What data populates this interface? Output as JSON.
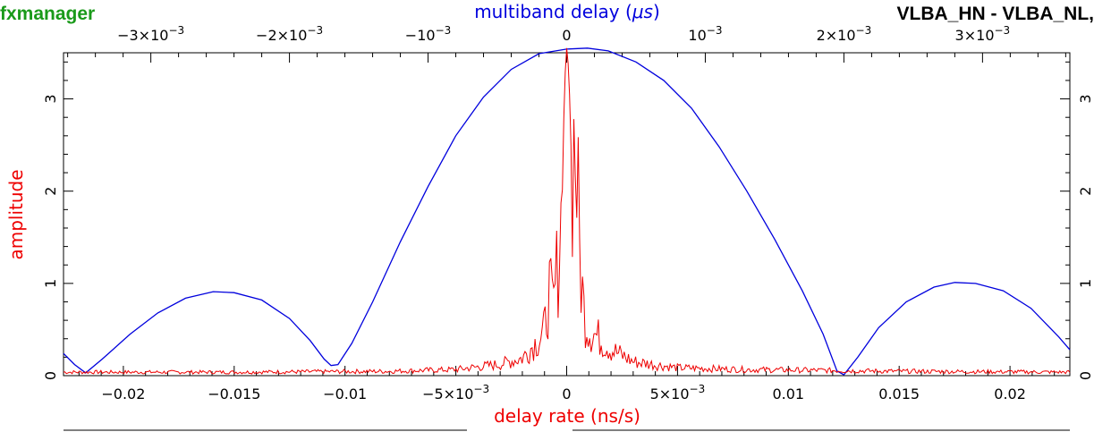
{
  "header": {
    "app_name": "fxmanager",
    "baseline": "VLBA_HN - VLBA_NL,"
  },
  "colors": {
    "brand": "#1a9a1a",
    "mbd_curve": "#0000dd",
    "rate_curve": "#ee0000",
    "axis": "#000000"
  },
  "chart_data": {
    "type": "line",
    "title": "",
    "ylabel": "amplitude",
    "ylim": [
      0,
      3.5
    ],
    "y_ticks": [
      "0",
      "1",
      "2",
      "3"
    ],
    "x_bottom": {
      "label": "delay rate (ns/s)",
      "lim": [
        -0.0227,
        0.0227
      ],
      "ticks": [
        {
          "v": -0.02,
          "label": "−0.02"
        },
        {
          "v": -0.015,
          "label": "−0.015"
        },
        {
          "v": -0.01,
          "label": "−0.01"
        },
        {
          "v": -0.005,
          "label": "−5×10",
          "sup": "−3"
        },
        {
          "v": 0,
          "label": "0"
        },
        {
          "v": 0.005,
          "label": "5×10",
          "sup": "−3"
        },
        {
          "v": 0.01,
          "label": "0.01"
        },
        {
          "v": 0.015,
          "label": "0.015"
        },
        {
          "v": 0.02,
          "label": "0.02"
        }
      ]
    },
    "x_top": {
      "label_text": "multiband delay (",
      "label_unit": "μs",
      "label_close": ")",
      "lim": [
        -0.00363,
        0.00363
      ],
      "ticks": [
        {
          "v": -0.003,
          "label": "−3×10",
          "sup": "−3"
        },
        {
          "v": -0.002,
          "label": "−2×10",
          "sup": "−3"
        },
        {
          "v": -0.001,
          "label": "−10",
          "sup": "−3"
        },
        {
          "v": 0,
          "label": "0"
        },
        {
          "v": 0.001,
          "label": "10",
          "sup": "−3"
        },
        {
          "v": 0.002,
          "label": "2×10",
          "sup": "−3"
        },
        {
          "v": 0.003,
          "label": "3×10",
          "sup": "−3"
        }
      ]
    },
    "series": [
      {
        "axis": "top",
        "color": "#0000dd",
        "points": [
          [
            -0.00363,
            0.24
          ],
          [
            -0.00355,
            0.12
          ],
          [
            -0.00347,
            0.03
          ],
          [
            -0.00335,
            0.18
          ],
          [
            -0.00315,
            0.45
          ],
          [
            -0.00295,
            0.68
          ],
          [
            -0.00275,
            0.84
          ],
          [
            -0.00255,
            0.91
          ],
          [
            -0.0024,
            0.9
          ],
          [
            -0.0022,
            0.82
          ],
          [
            -0.002,
            0.62
          ],
          [
            -0.00185,
            0.38
          ],
          [
            -0.00175,
            0.18
          ],
          [
            -0.0017,
            0.11
          ],
          [
            -0.00165,
            0.12
          ],
          [
            -0.00155,
            0.35
          ],
          [
            -0.0014,
            0.8
          ],
          [
            -0.0012,
            1.45
          ],
          [
            -0.001,
            2.05
          ],
          [
            -0.0008,
            2.6
          ],
          [
            -0.0006,
            3.02
          ],
          [
            -0.0004,
            3.32
          ],
          [
            -0.0002,
            3.49
          ],
          [
            0.0,
            3.54
          ],
          [
            0.00015,
            3.55
          ],
          [
            0.0003,
            3.52
          ],
          [
            0.0005,
            3.4
          ],
          [
            0.0007,
            3.2
          ],
          [
            0.0009,
            2.9
          ],
          [
            0.0011,
            2.48
          ],
          [
            0.0013,
            2.0
          ],
          [
            0.0015,
            1.48
          ],
          [
            0.0017,
            0.92
          ],
          [
            0.00185,
            0.45
          ],
          [
            0.00195,
            0.05
          ],
          [
            0.002,
            0.01
          ],
          [
            0.0021,
            0.2
          ],
          [
            0.00225,
            0.52
          ],
          [
            0.00245,
            0.8
          ],
          [
            0.00265,
            0.96
          ],
          [
            0.0028,
            1.01
          ],
          [
            0.00295,
            1.0
          ],
          [
            0.00315,
            0.92
          ],
          [
            0.00335,
            0.73
          ],
          [
            0.00355,
            0.42
          ],
          [
            0.00363,
            0.28
          ]
        ]
      },
      {
        "axis": "bottom",
        "color": "#ee0000",
        "points": [
          [
            -0.0227,
            0.04
          ],
          [
            -0.015,
            0.04
          ],
          [
            -0.008,
            0.05
          ],
          [
            -0.005,
            0.07
          ],
          [
            -0.003,
            0.13
          ],
          [
            -0.002,
            0.2
          ],
          [
            -0.0015,
            0.35
          ],
          [
            -0.001,
            0.5
          ],
          [
            -0.0008,
            0.98
          ],
          [
            -0.0006,
            0.75
          ],
          [
            -0.0004,
            1.3
          ],
          [
            -0.0002,
            1.95
          ],
          [
            -0.0001,
            3.15
          ],
          [
            0.0,
            3.55
          ],
          [
            0.0001,
            3.3
          ],
          [
            0.0002,
            2.45
          ],
          [
            0.0004,
            2.65
          ],
          [
            0.0006,
            1.3
          ],
          [
            0.0008,
            0.68
          ],
          [
            0.001,
            0.53
          ],
          [
            0.0015,
            0.42
          ],
          [
            0.002,
            0.3
          ],
          [
            0.003,
            0.16
          ],
          [
            0.005,
            0.09
          ],
          [
            0.008,
            0.07
          ],
          [
            0.015,
            0.05
          ],
          [
            0.0227,
            0.04
          ]
        ]
      }
    ]
  }
}
